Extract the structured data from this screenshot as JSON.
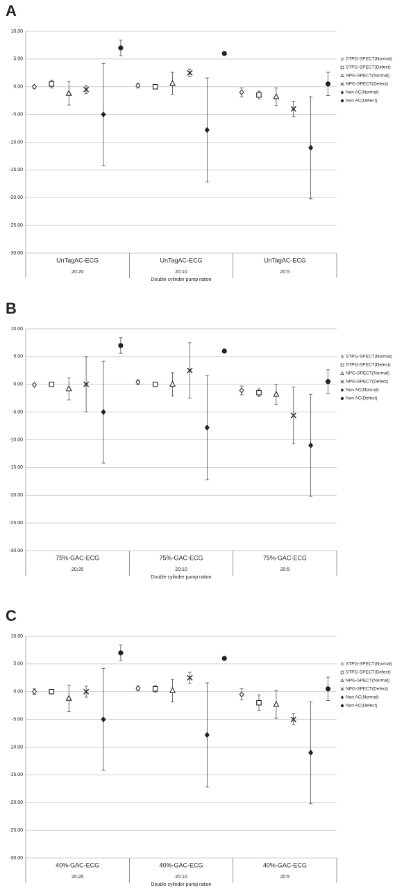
{
  "chart_data": [
    {
      "type": "errorbar",
      "label": "A",
      "categories": [
        "UnTagAC-ECG",
        "UnTagAC-ECG",
        "UnTagAC-ECG"
      ],
      "subcategories": [
        "20:20",
        "20:10",
        "20:5"
      ],
      "x_label": "Double cylinder pump ration",
      "ylim": [
        -30,
        10
      ],
      "yticks": [
        {
          "value": 10,
          "label": "10.00"
        },
        {
          "value": 5,
          "label": "5.00"
        },
        {
          "value": 0,
          "label": "0.00"
        },
        {
          "value": -5,
          "label": "-5.00"
        },
        {
          "value": -10,
          "label": "-10.00"
        },
        {
          "value": -15,
          "label": "-15.00"
        },
        {
          "value": -20,
          "label": "-20.00"
        },
        {
          "value": -25,
          "label": "-25.00"
        },
        {
          "value": -30,
          "label": "-30.00"
        }
      ],
      "grid": true,
      "series": [
        {
          "name": "STPG-SPECT(Normal)",
          "marker": "diamond-open",
          "color": "#222",
          "values": [
            0.0,
            0.2,
            -1.0
          ],
          "errors": [
            0.3,
            0.4,
            0.8
          ]
        },
        {
          "name": "STPG-SPECT(Defect)",
          "marker": "square-open",
          "color": "#222",
          "values": [
            0.5,
            0.0,
            -1.5
          ],
          "errors": [
            0.7,
            0,
            0.7
          ]
        },
        {
          "name": "NPG-SPECT(Normal)",
          "marker": "triangle-open",
          "color": "#222",
          "values": [
            -1.2,
            0.6,
            -1.8
          ],
          "errors": [
            2.1,
            2.0,
            1.6
          ]
        },
        {
          "name": "NPG-SPECT(Defect)",
          "marker": "x",
          "color": "#222",
          "values": [
            -0.5,
            2.5,
            -4.0
          ],
          "errors": [
            0.7,
            0.7,
            1.4
          ]
        },
        {
          "name": "Non AC(Normal)",
          "marker": "diamond",
          "color": "#222",
          "values": [
            -5.0,
            -7.8,
            -11.0
          ],
          "errors": [
            9.2,
            9.4,
            9.2
          ]
        },
        {
          "name": "Non AC(Defect)",
          "marker": "circle",
          "color": "#222",
          "values": [
            7.0,
            6.0,
            0.5
          ],
          "errors": [
            1.4,
            0,
            2.1
          ]
        }
      ]
    },
    {
      "type": "errorbar",
      "label": "B",
      "categories": [
        "75%-GAC-ECG",
        "75%-GAC-ECG",
        "75%-GAC-ECG"
      ],
      "subcategories": [
        "20:20",
        "20:10",
        "20:5"
      ],
      "x_label": "Double cylinder pump ration",
      "ylim": [
        -30,
        10
      ],
      "yticks": [
        {
          "value": 10,
          "label": "10.00"
        },
        {
          "value": 5,
          "label": "5.00"
        },
        {
          "value": 0,
          "label": "0.00"
        },
        {
          "value": -5,
          "label": "-5.00"
        },
        {
          "value": -10,
          "label": "-10.00"
        },
        {
          "value": -15,
          "label": "-15.00"
        },
        {
          "value": -20,
          "label": "-20.00"
        },
        {
          "value": -25,
          "label": "-25.00"
        },
        {
          "value": -30,
          "label": "-30.00"
        }
      ],
      "grid": true,
      "series": [
        {
          "name": "STPG-SPECT(Normal)",
          "marker": "diamond-open",
          "color": "#222",
          "values": [
            -0.1,
            0.4,
            -1.1
          ],
          "errors": [
            0.2,
            0.4,
            0.8
          ]
        },
        {
          "name": "STPG-SPECT(Defect)",
          "marker": "square-open",
          "color": "#222",
          "values": [
            0.0,
            0.0,
            -1.5
          ],
          "errors": [
            0,
            0,
            0.7
          ]
        },
        {
          "name": "NPG-SPECT(Normal)",
          "marker": "triangle-open",
          "color": "#222",
          "values": [
            -0.8,
            0.0,
            -1.8
          ],
          "errors": [
            2.0,
            2.1,
            1.8
          ]
        },
        {
          "name": "NPG-SPECT(Defect)",
          "marker": "x",
          "color": "#222",
          "values": [
            0.0,
            2.5,
            -5.6
          ],
          "errors": [
            5.0,
            5.0,
            5.1
          ]
        },
        {
          "name": "Non AC(Normal)",
          "marker": "diamond",
          "color": "#222",
          "values": [
            -5.0,
            -7.8,
            -11.0
          ],
          "errors": [
            9.2,
            9.4,
            9.2
          ]
        },
        {
          "name": "Non AC(Defect)",
          "marker": "circle",
          "color": "#222",
          "values": [
            7.0,
            6.0,
            0.5
          ],
          "errors": [
            1.4,
            0,
            2.1
          ]
        }
      ]
    },
    {
      "type": "errorbar",
      "label": "C",
      "categories": [
        "40%-GAC-ECG",
        "40%-GAC-ECG",
        "40%-GAC-ECG"
      ],
      "subcategories": [
        "20:20",
        "20:10",
        "20:5"
      ],
      "x_label": "Double cylinder pump ration",
      "ylim": [
        -30,
        10
      ],
      "yticks": [
        {
          "value": 10,
          "label": "10.00"
        },
        {
          "value": 5,
          "label": "5.00"
        },
        {
          "value": 0,
          "label": "0.00"
        },
        {
          "value": -5,
          "label": "-5.00"
        },
        {
          "value": -10,
          "label": "-10.00"
        },
        {
          "value": -15,
          "label": "-15.00"
        },
        {
          "value": -20,
          "label": "-20.00"
        },
        {
          "value": -25,
          "label": "-25.00"
        },
        {
          "value": -30,
          "label": "-30.00"
        }
      ],
      "grid": true,
      "series": [
        {
          "name": "STPG-SPECT(Normal)",
          "marker": "diamond-open",
          "color": "#222",
          "values": [
            0.0,
            0.6,
            -0.5
          ],
          "errors": [
            0.5,
            0.4,
            1.0
          ]
        },
        {
          "name": "STPG-SPECT(Defect)",
          "marker": "square-open",
          "color": "#222",
          "values": [
            0.0,
            0.5,
            -2.0
          ],
          "errors": [
            0,
            0.6,
            1.4
          ]
        },
        {
          "name": "NPG-SPECT(Normal)",
          "marker": "triangle-open",
          "color": "#222",
          "values": [
            -1.2,
            0.2,
            -2.3
          ],
          "errors": [
            2.4,
            2.0,
            2.5
          ]
        },
        {
          "name": "NPG-SPECT(Defect)",
          "marker": "x",
          "color": "#222",
          "values": [
            0.0,
            2.5,
            -5.0
          ],
          "errors": [
            1.0,
            1.0,
            1.0
          ]
        },
        {
          "name": "Non AC(Normal)",
          "marker": "diamond",
          "color": "#222",
          "values": [
            -5.0,
            -7.8,
            -11.0
          ],
          "errors": [
            9.2,
            9.4,
            9.2
          ]
        },
        {
          "name": "Non AC(Defect)",
          "marker": "circle",
          "color": "#222",
          "values": [
            7.0,
            6.0,
            0.5
          ],
          "errors": [
            1.4,
            0,
            2.1
          ]
        }
      ]
    }
  ]
}
